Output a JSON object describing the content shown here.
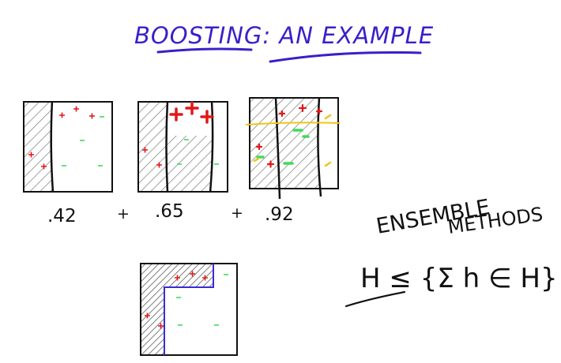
{
  "title": "BOOSTING: AN EXAMPLE",
  "weights": [
    ".42",
    "+",
    ".65",
    "+",
    ".92"
  ],
  "ensemble_label": {
    "line1": "ENSEMBLE",
    "line2": "METHODS"
  },
  "formula": "H ≤ {Σ h ∈ H}",
  "colors": {
    "title": "#3a1fc9",
    "ink": "#111111",
    "hatch": "#8a8a8a",
    "plus": "#e11818",
    "minus": "#3fdc5a",
    "combined_boundary": "#3a2bd6",
    "yellow": "#f0c419"
  }
}
